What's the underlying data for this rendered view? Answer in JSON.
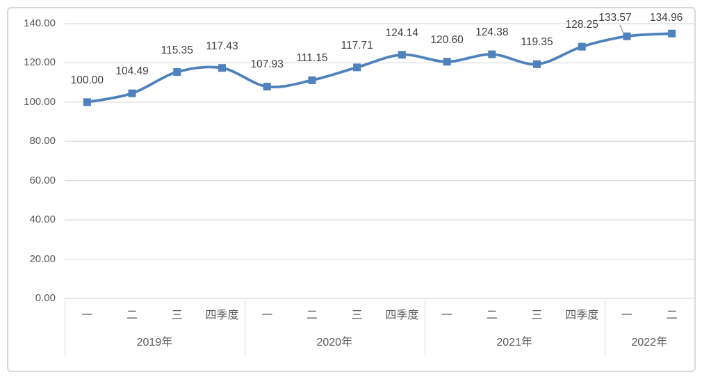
{
  "chart_data": {
    "type": "line",
    "smooth": true,
    "title": "",
    "legend": "none",
    "grid": true,
    "values": [
      100.0,
      104.49,
      115.35,
      117.43,
      107.93,
      111.15,
      117.71,
      124.14,
      120.6,
      124.38,
      119.35,
      128.25,
      133.57,
      134.96
    ],
    "data_labels": [
      "100.00",
      "104.49",
      "115.35",
      "117.43",
      "107.93",
      "111.15",
      "117.71",
      "124.14",
      "120.60",
      "124.38",
      "119.35",
      "128.25",
      "133.57",
      "134.96"
    ],
    "categories": [
      "一",
      "二",
      "三",
      "四季度",
      "一",
      "二",
      "三",
      "四季度",
      "一",
      "二",
      "三",
      "四季度",
      "一",
      "二"
    ],
    "year_groups": [
      {
        "label": "2019年",
        "span": 4
      },
      {
        "label": "2020年",
        "span": 4
      },
      {
        "label": "2021年",
        "span": 4
      },
      {
        "label": "2022年",
        "span": 2
      }
    ],
    "y_tick_labels": [
      "0.00",
      "20.00",
      "40.00",
      "60.00",
      "80.00",
      "100.00",
      "120.00",
      "140.00"
    ],
    "ylim": [
      0,
      140
    ],
    "y_step": 20,
    "colors": {
      "line": "#4F81BD",
      "marker": "#4F81BD",
      "gridline": "#D9D9D9",
      "frame_border": "#D9D9D9",
      "axis_text": "#595959",
      "data_label_text": "#404040",
      "leader_line": "#8C8C8C",
      "background": "#FFFFFF"
    }
  }
}
